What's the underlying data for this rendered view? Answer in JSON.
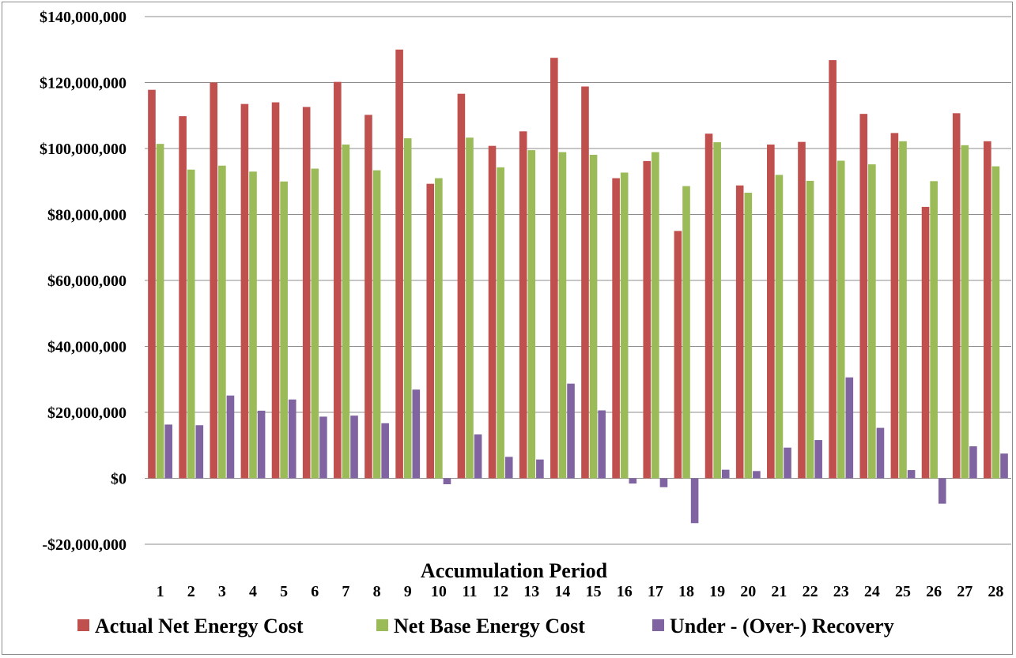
{
  "chart_data": {
    "type": "bar",
    "title": "",
    "xlabel": "Accumulation Period",
    "ylabel": "",
    "categories": [
      "1",
      "2",
      "3",
      "4",
      "5",
      "6",
      "7",
      "8",
      "9",
      "10",
      "11",
      "12",
      "13",
      "14",
      "15",
      "16",
      "17",
      "18",
      "19",
      "20",
      "21",
      "22",
      "23",
      "24",
      "25",
      "26",
      "27",
      "28"
    ],
    "ylim": [
      -20000000,
      140000000
    ],
    "yticks": [
      -20000000,
      0,
      20000000,
      40000000,
      60000000,
      80000000,
      100000000,
      120000000,
      140000000
    ],
    "ytick_labels": [
      "-$20,000,000",
      "$0",
      "$20,000,000",
      "$40,000,000",
      "$60,000,000",
      "$80,000,000",
      "$100,000,000",
      "$120,000,000",
      "$140,000,000"
    ],
    "grid": true,
    "legend_position": "bottom",
    "series": [
      {
        "name": "Actual Net Energy Cost",
        "color": "#c0504d",
        "values": [
          117800000,
          109800000,
          120000000,
          113500000,
          114000000,
          112600000,
          120200000,
          110200000,
          130000000,
          89300000,
          116600000,
          100800000,
          105200000,
          127500000,
          118800000,
          91000000,
          96200000,
          75000000,
          104500000,
          88800000,
          101200000,
          102000000,
          126800000,
          110500000,
          104700000,
          82300000,
          110700000,
          102200000
        ]
      },
      {
        "name": "Net Base Energy Cost",
        "color": "#9bbb59",
        "values": [
          101400000,
          93600000,
          94800000,
          93000000,
          90000000,
          93900000,
          101200000,
          93400000,
          103100000,
          91000000,
          103300000,
          94300000,
          99500000,
          98900000,
          98100000,
          92700000,
          98900000,
          88600000,
          101900000,
          86600000,
          92000000,
          90200000,
          96300000,
          95200000,
          102200000,
          90100000,
          101000000,
          94600000
        ]
      },
      {
        "name": "Under - (Over-) Recovery",
        "color": "#8064a2",
        "values": [
          16300000,
          16100000,
          25100000,
          20500000,
          23900000,
          18700000,
          19000000,
          16700000,
          26900000,
          -1800000,
          13300000,
          6500000,
          5700000,
          28700000,
          20600000,
          -1600000,
          -2700000,
          -13600000,
          2600000,
          2200000,
          9300000,
          11600000,
          30600000,
          15300000,
          2500000,
          -7700000,
          9700000,
          7500000
        ]
      }
    ]
  }
}
